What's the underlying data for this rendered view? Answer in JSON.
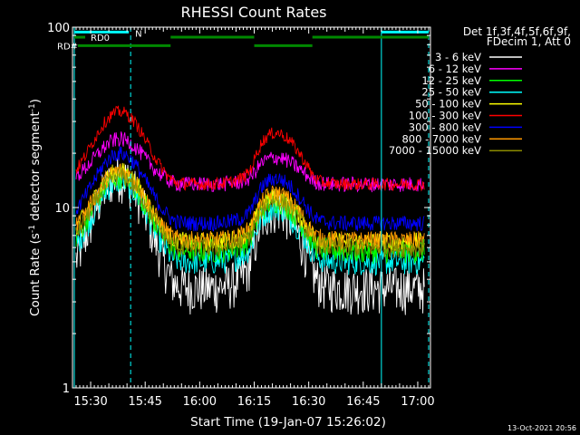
{
  "chart_data": {
    "type": "line",
    "title": "RHESSI Count Rates",
    "xlabel": "Start Time (19-Jan-07 15:26:02)",
    "ylabel_main": "Count Rate (s",
    "ylabel_sup1": "-1",
    "ylabel_mid": " detector segment",
    "ylabel_sup2": "-1",
    "ylabel_end": ")",
    "y_scale": "log",
    "ylim": [
      1,
      100
    ],
    "xlim_minutes": [
      -1.0,
      97.5
    ],
    "y_ticks": [
      "1",
      "10",
      "100"
    ],
    "x_ticks": [
      {
        "label": "15:30",
        "t": 4
      },
      {
        "label": "15:45",
        "t": 19
      },
      {
        "label": "16:00",
        "t": 34
      },
      {
        "label": "16:15",
        "t": 49
      },
      {
        "label": "16:30",
        "t": 64
      },
      {
        "label": "16:45",
        "t": 79
      },
      {
        "label": "17:00",
        "t": 94
      }
    ],
    "legend_header": [
      "Det 1f,3f,4f,5f,6f,9f,",
      "FDecim 1, Att 0"
    ],
    "legend_position": "right",
    "series": [
      {
        "name": "3 - 6 keV",
        "color": "#ffffff",
        "baseline": 3.6,
        "peak1": 15,
        "peak2": 10,
        "noise": 0.3
      },
      {
        "name": "6 - 12 keV",
        "color": "#ff00ff",
        "baseline": 13.5,
        "peak1": 24,
        "peak2": 19,
        "noise": 0.1
      },
      {
        "name": "12 - 25 keV",
        "color": "#00ff00",
        "baseline": 5.8,
        "peak1": 15,
        "peak2": 11,
        "noise": 0.16
      },
      {
        "name": "25 - 50 keV",
        "color": "#00ffff",
        "baseline": 5.0,
        "peak1": 14,
        "peak2": 10,
        "noise": 0.16
      },
      {
        "name": "50 - 100 keV",
        "color": "#ffff00",
        "baseline": 6.5,
        "peak1": 16,
        "peak2": 11.5,
        "noise": 0.12
      },
      {
        "name": "100 - 300 keV",
        "color": "#ff0000",
        "baseline": 13.5,
        "peak1": 34,
        "peak2": 26,
        "noise": 0.08
      },
      {
        "name": "300 - 800 keV",
        "color": "#0000ff",
        "baseline": 8.2,
        "peak1": 20,
        "peak2": 14.5,
        "noise": 0.1
      },
      {
        "name": "800 - 7000 keV",
        "color": "#ff9900",
        "baseline": 6.6,
        "peak1": 16,
        "peak2": 12,
        "noise": 0.12
      },
      {
        "name": "7000 - 15000 keV",
        "color": "#8b8b00",
        "baseline": 6.0,
        "peak1": 15,
        "peak2": 11,
        "noise": 0.12
      }
    ],
    "flag_bars": [
      {
        "label": "N",
        "color": "#00ffff",
        "level": 94,
        "segments": [
          [
            -0.5,
            14.5
          ],
          [
            84,
            97
          ]
        ]
      },
      {
        "label": "RD0",
        "color": "#008800",
        "level": 88,
        "segments": [
          [
            -0.5,
            2.5
          ],
          [
            26,
            49
          ],
          [
            65,
            97
          ]
        ]
      },
      {
        "label": "RD#",
        "color": "#008800",
        "level": 79,
        "segments": [
          [
            0.5,
            26
          ],
          [
            49,
            65
          ]
        ]
      }
    ],
    "vertical_markers": [
      {
        "t": -0.5,
        "style": "solid",
        "color": "#00ffff"
      },
      {
        "t": 15.0,
        "style": "dashed",
        "color": "#00ffff"
      },
      {
        "t": 84.0,
        "style": "solid",
        "color": "#00ffff"
      },
      {
        "t": 97.0,
        "style": "dashed",
        "color": "#00ffff"
      }
    ]
  },
  "footer": {
    "timestamp": "13-Oct-2021 20:56"
  }
}
